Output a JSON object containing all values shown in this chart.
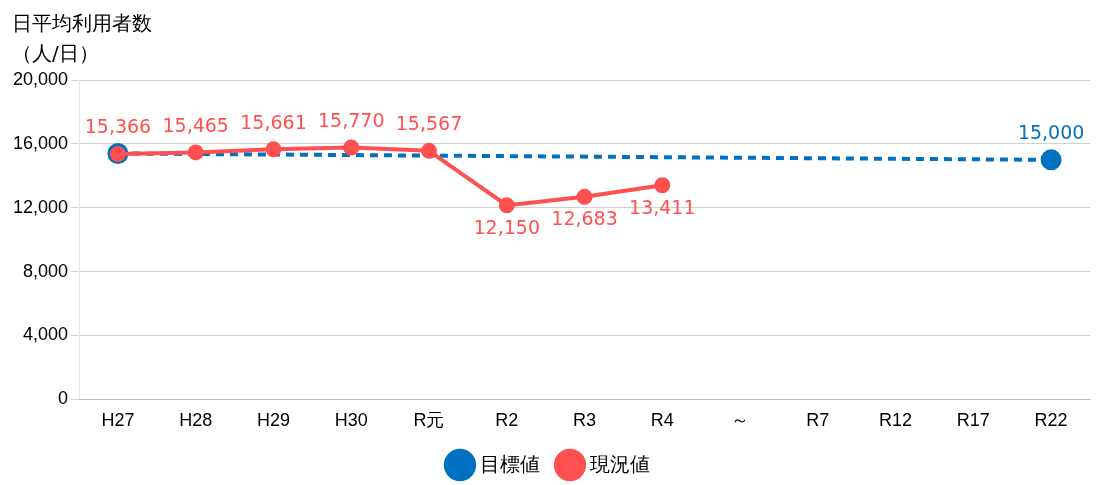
{
  "chart_data": {
    "type": "line",
    "ylabel": "日平均利用者数（人/日）",
    "categories": [
      "H27",
      "H28",
      "H29",
      "H30",
      "R元",
      "R2",
      "R3",
      "R4",
      "～",
      "R7",
      "R12",
      "R17",
      "R22"
    ],
    "series": [
      {
        "name": "目標値",
        "color": "#0070c0",
        "line_style": "dashed",
        "values": [
          15400,
          null,
          null,
          null,
          null,
          null,
          null,
          null,
          null,
          null,
          null,
          null,
          15000
        ],
        "value_labels": [
          null,
          null,
          null,
          null,
          null,
          null,
          null,
          null,
          null,
          null,
          null,
          null,
          "15,000"
        ]
      },
      {
        "name": "現況値",
        "color": "#ff5050",
        "line_style": "solid",
        "values": [
          15366,
          15465,
          15661,
          15770,
          15567,
          12150,
          12683,
          13411,
          null,
          null,
          null,
          null,
          null
        ],
        "value_labels": [
          "15,366",
          "15,465",
          "15,661",
          "15,770",
          "15,567",
          "12,150",
          "12,683",
          "13,411",
          null,
          null,
          null,
          null,
          null
        ]
      }
    ],
    "ylim": [
      0,
      20000
    ],
    "yticks": [
      {
        "value": 0,
        "label": "0"
      },
      {
        "value": 4000,
        "label": "4,000"
      },
      {
        "value": 8000,
        "label": "8,000"
      },
      {
        "value": 12000,
        "label": "12,000"
      },
      {
        "value": 16000,
        "label": "16,000"
      },
      {
        "value": 20000,
        "label": "20,000"
      }
    ],
    "grid": "y",
    "legend": "bottom",
    "marker": "circle"
  }
}
